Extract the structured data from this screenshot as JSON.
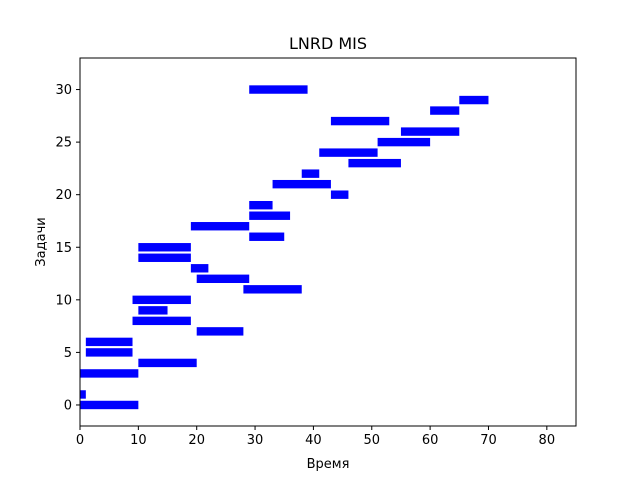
{
  "chart_data": {
    "type": "bar",
    "orientation": "horizontal-intervals",
    "title": "LNRD MIS",
    "xlabel": "Время",
    "ylabel": "Задачи",
    "xlim": [
      0,
      85
    ],
    "ylim": [
      -2,
      33
    ],
    "xticks": [
      "0",
      "10",
      "20",
      "30",
      "40",
      "50",
      "60",
      "70",
      "80"
    ],
    "yticks": [
      "0",
      "5",
      "10",
      "15",
      "20",
      "25",
      "30"
    ],
    "grid": false,
    "color": "#0000ff",
    "tasks": [
      {
        "task": 0,
        "start": 0,
        "end": 10
      },
      {
        "task": 1,
        "start": 0,
        "end": 1
      },
      {
        "task": 3,
        "start": 0,
        "end": 10
      },
      {
        "task": 4,
        "start": 10,
        "end": 20
      },
      {
        "task": 5,
        "start": 1,
        "end": 9
      },
      {
        "task": 6,
        "start": 1,
        "end": 9
      },
      {
        "task": 7,
        "start": 20,
        "end": 28
      },
      {
        "task": 8,
        "start": 9,
        "end": 19
      },
      {
        "task": 9,
        "start": 10,
        "end": 15
      },
      {
        "task": 10,
        "start": 9,
        "end": 19
      },
      {
        "task": 11,
        "start": 28,
        "end": 38
      },
      {
        "task": 12,
        "start": 20,
        "end": 29
      },
      {
        "task": 13,
        "start": 19,
        "end": 22
      },
      {
        "task": 14,
        "start": 10,
        "end": 19
      },
      {
        "task": 15,
        "start": 10,
        "end": 19
      },
      {
        "task": 16,
        "start": 29,
        "end": 35
      },
      {
        "task": 17,
        "start": 19,
        "end": 29
      },
      {
        "task": 18,
        "start": 29,
        "end": 36
      },
      {
        "task": 19,
        "start": 29,
        "end": 33
      },
      {
        "task": 20,
        "start": 43,
        "end": 46
      },
      {
        "task": 21,
        "start": 33,
        "end": 43
      },
      {
        "task": 22,
        "start": 38,
        "end": 41
      },
      {
        "task": 23,
        "start": 46,
        "end": 55
      },
      {
        "task": 24,
        "start": 41,
        "end": 51
      },
      {
        "task": 25,
        "start": 51,
        "end": 60
      },
      {
        "task": 26,
        "start": 55,
        "end": 65
      },
      {
        "task": 27,
        "start": 43,
        "end": 53
      },
      {
        "task": 28,
        "start": 60,
        "end": 65
      },
      {
        "task": 29,
        "start": 65,
        "end": 70
      },
      {
        "task": 30,
        "start": 29,
        "end": 39
      }
    ]
  }
}
